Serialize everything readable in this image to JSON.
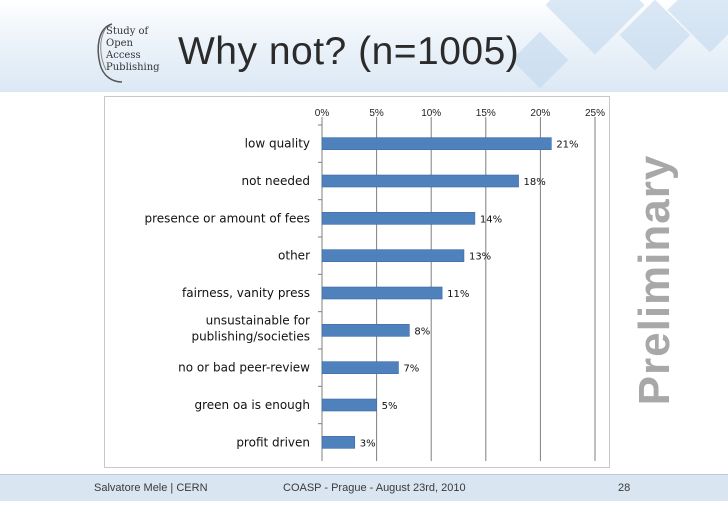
{
  "slide": {
    "title": "Why not? (n=1005)",
    "logo_lines": [
      "Study of",
      "Open",
      "Access",
      "Publishing"
    ],
    "watermark": "Preliminary",
    "footer": {
      "left": "Salvatore Mele | CERN",
      "center": "COASP - Prague - August 23rd, 2010",
      "page": "28"
    }
  },
  "colors": {
    "bar": "#4f81bd",
    "bar_edge": "#3a6aa3",
    "grid": "#7f7f7f",
    "watermark": "#a8a8a8",
    "footer_band": "#d9e5f1"
  },
  "chart_data": {
    "type": "bar",
    "orientation": "horizontal",
    "categories": [
      "low quality",
      "not needed",
      "presence or amount of fees",
      "other",
      "fairness, vanity press",
      "unsustainable for publishing/societies",
      "no or bad peer-review",
      "green oa is enough",
      "profit driven"
    ],
    "category_lines": [
      [
        "low quality"
      ],
      [
        "not needed"
      ],
      [
        "presence or amount of fees"
      ],
      [
        "other"
      ],
      [
        "fairness, vanity press"
      ],
      [
        "unsustainable for",
        "publishing/societies"
      ],
      [
        "no or bad peer-review"
      ],
      [
        "green oa is enough"
      ],
      [
        "profit driven"
      ]
    ],
    "values": [
      21,
      18,
      14,
      13,
      11,
      8,
      7,
      5,
      3
    ],
    "data_labels": [
      "21%",
      "18%",
      "14%",
      "13%",
      "11%",
      "8%",
      "7%",
      "5%",
      "3%"
    ],
    "xlim": [
      0,
      25
    ],
    "xticks": [
      0,
      5,
      10,
      15,
      20,
      25
    ],
    "xtick_labels": [
      "0%",
      "5%",
      "10%",
      "15%",
      "20%",
      "25%"
    ],
    "x_axis_position": "top",
    "grid": true,
    "legend": "none"
  }
}
